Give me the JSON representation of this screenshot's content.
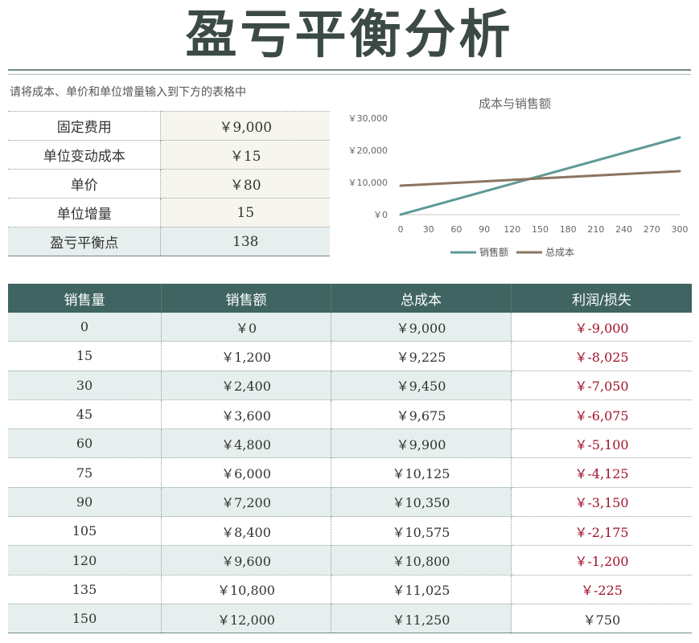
{
  "title": "盈亏平衡分析",
  "instruction": "请将成本、单价和单位增量输入到下方的表格中",
  "inputs": [
    {
      "label": "固定费用",
      "value": "￥9,000"
    },
    {
      "label": "单位变动成本",
      "value": "￥15"
    },
    {
      "label": "单价",
      "value": "￥80"
    },
    {
      "label": "单位增量",
      "value": "15"
    },
    {
      "label": "盈亏平衡点",
      "value": "138"
    }
  ],
  "chart_data": {
    "type": "line",
    "title": "成本与销售额",
    "x": [
      0,
      30,
      60,
      90,
      120,
      150,
      180,
      210,
      240,
      270,
      300
    ],
    "x_tick_labels": [
      "0",
      "30",
      "60",
      "90",
      "120",
      "150",
      "180",
      "210",
      "240",
      "270",
      "300"
    ],
    "y_tick_labels": [
      "￥0",
      "￥10,000",
      "￥20,000",
      "￥30,000"
    ],
    "ylim": [
      0,
      30000
    ],
    "xlim": [
      0,
      300
    ],
    "series": [
      {
        "name": "销售额",
        "color": "#5e9a96",
        "x": [
          0,
          300
        ],
        "values": [
          0,
          24000
        ]
      },
      {
        "name": "总成本",
        "color": "#8b7561",
        "x": [
          0,
          300
        ],
        "values": [
          9000,
          13500
        ]
      }
    ],
    "legend_position": "bottom",
    "grid": false
  },
  "table": {
    "headers": [
      "销售量",
      "销售额",
      "总成本",
      "利润/损失"
    ],
    "rows": [
      [
        "0",
        "￥0",
        "￥9,000",
        "￥-9,000"
      ],
      [
        "15",
        "￥1,200",
        "￥9,225",
        "￥-8,025"
      ],
      [
        "30",
        "￥2,400",
        "￥9,450",
        "￥-7,050"
      ],
      [
        "45",
        "￥3,600",
        "￥9,675",
        "￥-6,075"
      ],
      [
        "60",
        "￥4,800",
        "￥9,900",
        "￥-5,100"
      ],
      [
        "75",
        "￥6,000",
        "￥10,125",
        "￥-4,125"
      ],
      [
        "90",
        "￥7,200",
        "￥10,350",
        "￥-3,150"
      ],
      [
        "105",
        "￥8,400",
        "￥10,575",
        "￥-2,175"
      ],
      [
        "120",
        "￥9,600",
        "￥10,800",
        "￥-1,200"
      ],
      [
        "135",
        "￥10,800",
        "￥11,025",
        "￥-225"
      ],
      [
        "150",
        "￥12,000",
        "￥11,250",
        "￥750"
      ]
    ]
  },
  "colors": {
    "header_bg": "#3f6461",
    "loss_text": "#a1122a",
    "input_bg": "#f7f6ee",
    "highlight_bg": "#e6efee"
  }
}
